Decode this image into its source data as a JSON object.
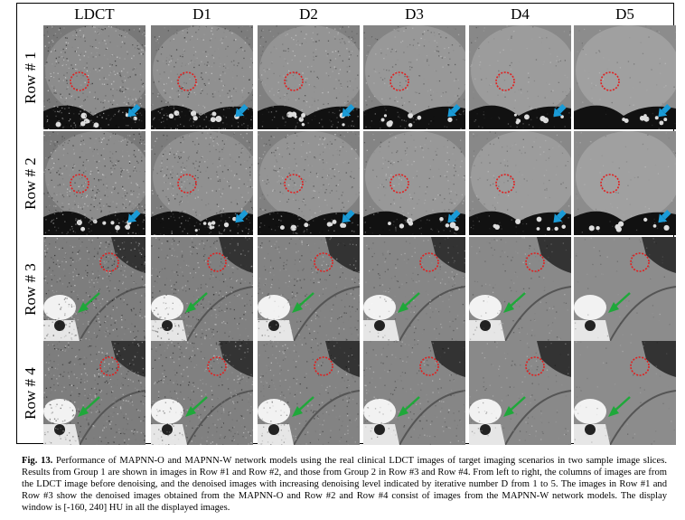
{
  "columns": [
    "LDCT",
    "D1",
    "D2",
    "D3",
    "D4",
    "D5"
  ],
  "rows": [
    {
      "label": "Row # 1",
      "group": 1,
      "network": "MAPNN-O",
      "arrow_color": "#1a9bd7",
      "noise": 0.95
    },
    {
      "label": "Row # 2",
      "group": 1,
      "network": "MAPNN-W",
      "arrow_color": "#1a9bd7",
      "noise": 0.95
    },
    {
      "label": "Row # 3",
      "group": 2,
      "network": "MAPNN-O",
      "arrow_color": "#1fa83a",
      "noise": 0.9
    },
    {
      "label": "Row # 4",
      "group": 2,
      "network": "MAPNN-W",
      "arrow_color": "#1fa83a",
      "noise": 0.9
    }
  ],
  "roi_circle_color": "#e02020",
  "caption": {
    "figure_label": "Fig. 13.",
    "text": "Performance of MAPNN-O and MAPNN-W network models using the real clinical LDCT images of target imaging scenarios in two sample image slices. Results from Group 1 are shown in images in Row #1 and Row #2, and those from Group 2 in Row #3 and Row #4. From left to right, the columns of images are from the LDCT image before denoising, and the denoised images with increasing denoising level indicated by iterative number D from 1 to 5. The images in Row #1 and Row #3 show the denoised images obtained from the MAPNN-O and Row #2 and Row #4 consist of images from the MAPNN-W network models. The display window is [-160, 240] HU in all the displayed images."
  }
}
